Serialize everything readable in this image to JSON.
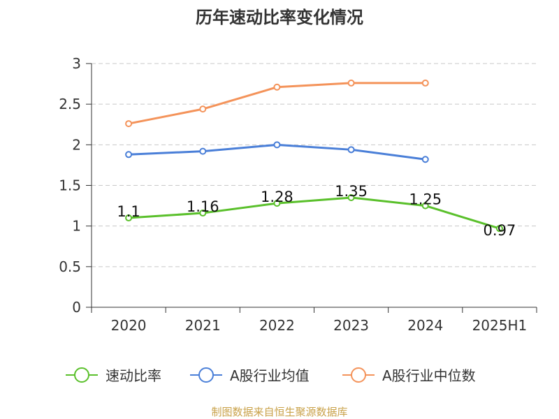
{
  "chart_data": {
    "type": "line",
    "title": "历年速动比率变化情况",
    "categories": [
      "2020",
      "2021",
      "2022",
      "2023",
      "2024",
      "2025H1"
    ],
    "ylim": [
      0,
      3
    ],
    "yticks": [
      "0",
      "0.5",
      "1",
      "1.5",
      "2",
      "2.5",
      "3"
    ],
    "grid": true,
    "legend_position": "bottom",
    "series": [
      {
        "name": "速动比率",
        "color": "#5ac02b",
        "values": [
          1.1,
          1.16,
          1.28,
          1.35,
          1.25,
          0.97
        ],
        "labels": [
          "1.1",
          "1.16",
          "1.28",
          "1.35",
          "1.25",
          "0.97"
        ]
      },
      {
        "name": "A股行业均值",
        "color": "#4a7fd8",
        "values": [
          1.88,
          1.92,
          2.0,
          1.94,
          1.82,
          null
        ]
      },
      {
        "name": "A股行业中位数",
        "color": "#f4935a",
        "values": [
          2.26,
          2.44,
          2.71,
          2.76,
          2.76,
          null
        ]
      }
    ]
  },
  "source_text": "制图数据来自恒生聚源数据库",
  "colors": {
    "axis": "#333333",
    "grid": "#c8c8c8",
    "source": "#c9a24a",
    "title": "#333333"
  }
}
